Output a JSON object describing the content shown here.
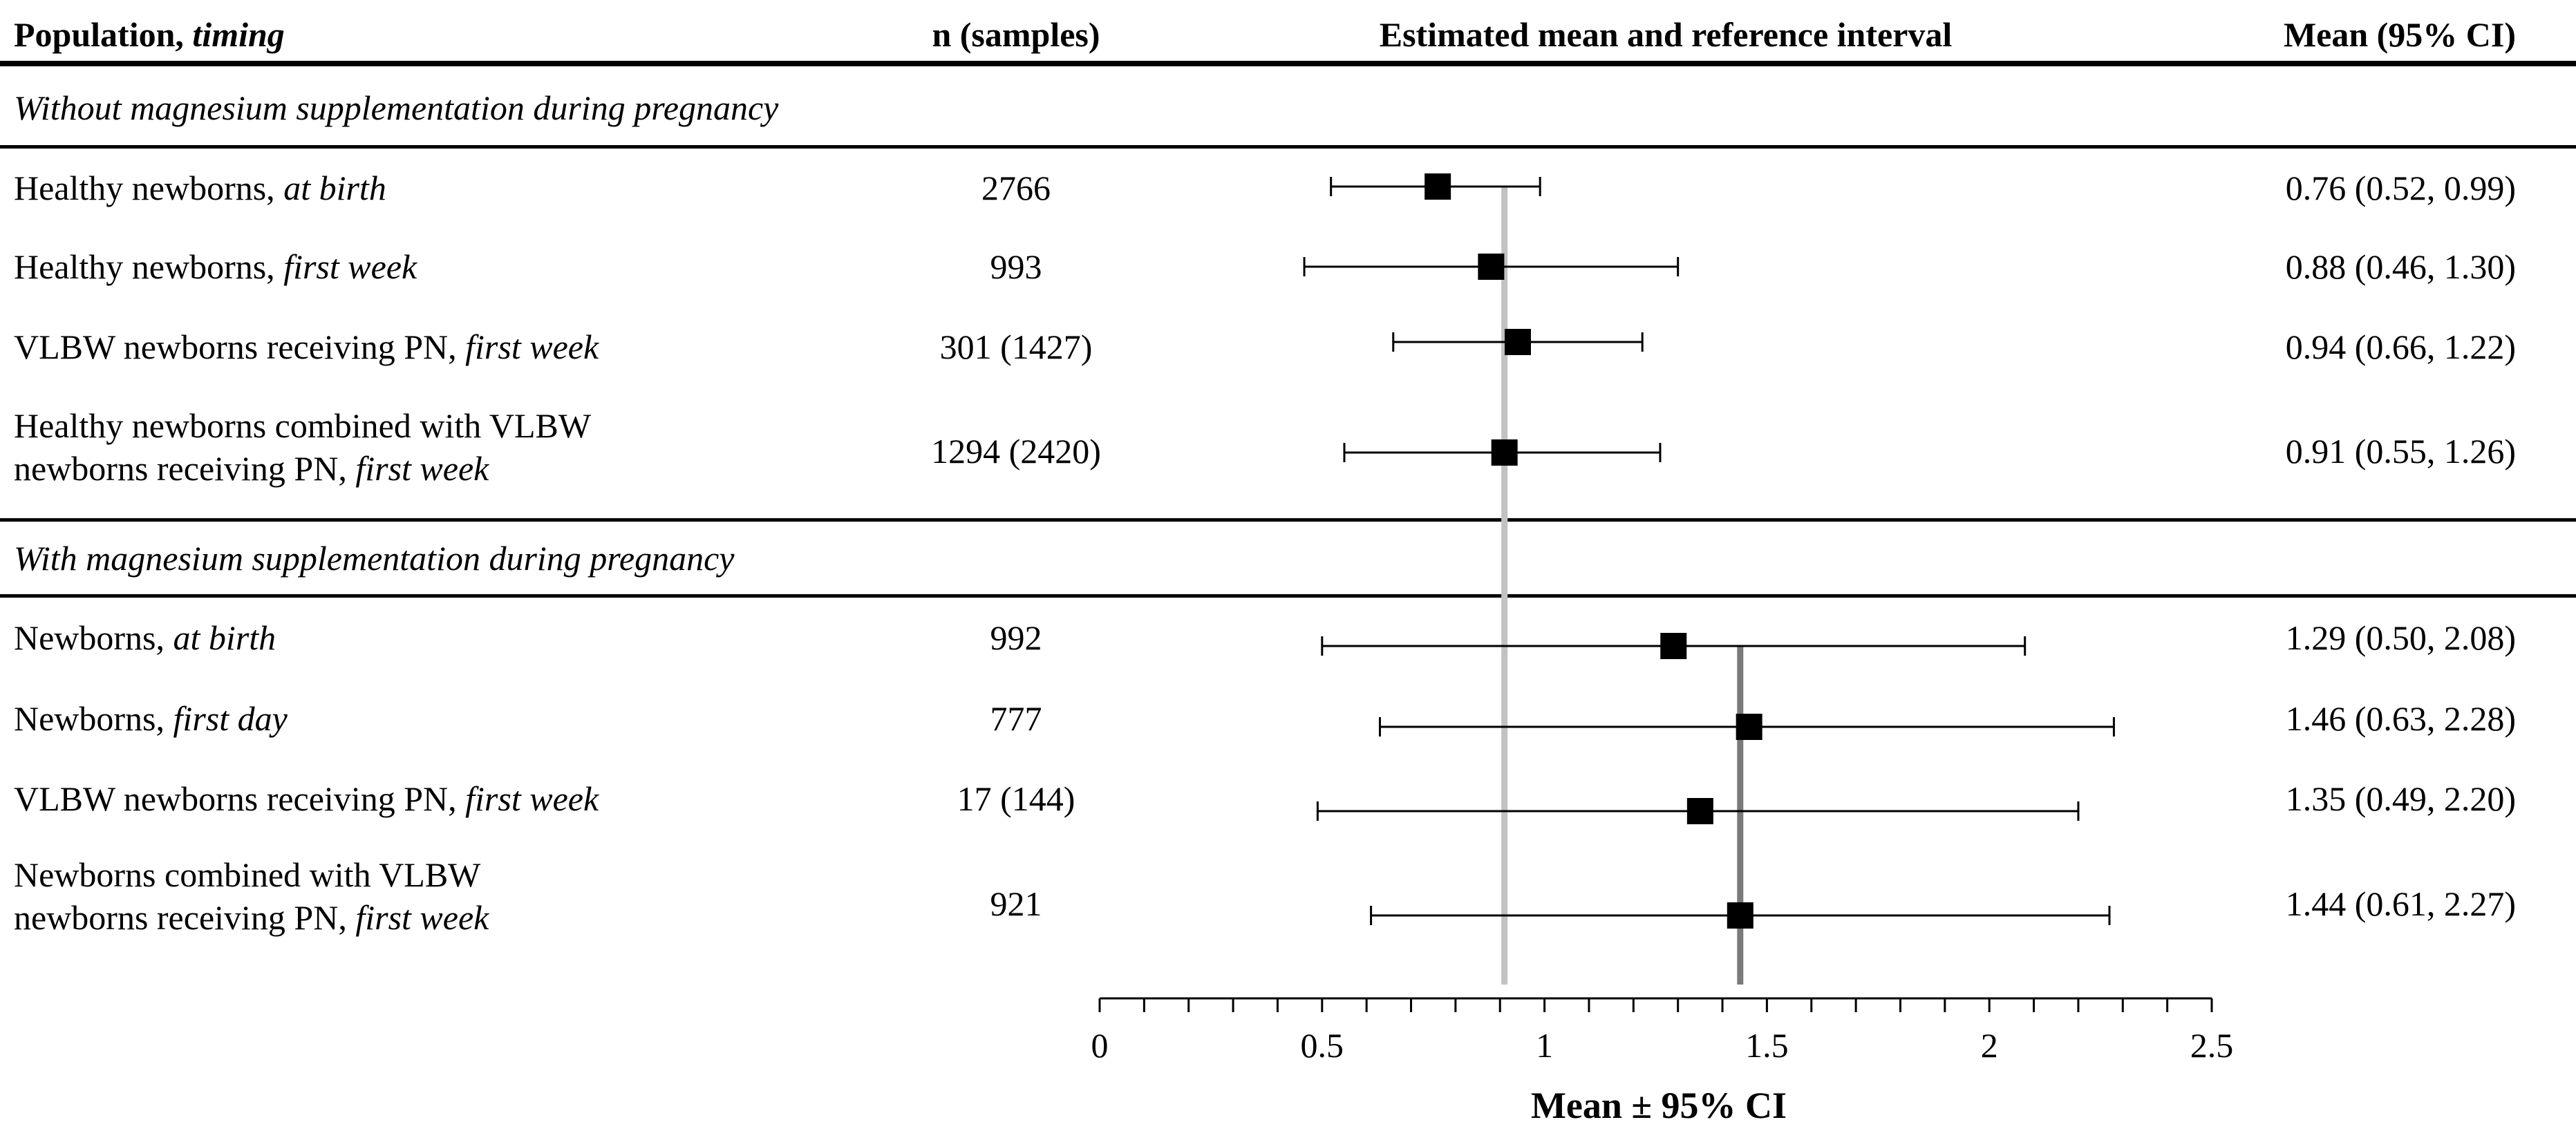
{
  "header": {
    "population_label": "Population, ",
    "population_timing": "timing",
    "n_label": "n (samples)",
    "interval_label": "Estimated mean and reference interval",
    "ci_label": "Mean (95% CI)"
  },
  "sections": [
    {
      "title": "Without magnesium supplementation during pregnancy"
    },
    {
      "title": "With magnesium supplementation during pregnancy"
    }
  ],
  "rows": [
    {
      "line1": "Healthy newborns, ",
      "line1_italic": "at birth",
      "line2": "",
      "line2_italic": "",
      "n": "2766",
      "ci_text": "0.76 (0.52, 0.99)"
    },
    {
      "line1": "Healthy newborns, ",
      "line1_italic": "first week",
      "line2": "",
      "line2_italic": "",
      "n": "993",
      "ci_text": "0.88 (0.46, 1.30)"
    },
    {
      "line1": "VLBW newborns receiving PN, ",
      "line1_italic": "first week",
      "line2": "",
      "line2_italic": "",
      "n": "301 (1427)",
      "ci_text": "0.94 (0.66, 1.22)"
    },
    {
      "line1": "Healthy newborns combined with VLBW",
      "line1_italic": "",
      "line2": "newborns receiving PN, ",
      "line2_italic": "first week",
      "n": "1294 (2420)",
      "ci_text": "0.91 (0.55, 1.26)"
    },
    {
      "line1": "Newborns, ",
      "line1_italic": "at birth",
      "line2": "",
      "line2_italic": "",
      "n": "992",
      "ci_text": "1.29 (0.50, 2.08)"
    },
    {
      "line1": "Newborns, ",
      "line1_italic": "first day",
      "line2": "",
      "line2_italic": "",
      "n": "777",
      "ci_text": "1.46 (0.63, 2.28)"
    },
    {
      "line1": "VLBW newborns receiving PN, ",
      "line1_italic": "first week",
      "line2": "",
      "line2_italic": "",
      "n": "17 (144)",
      "ci_text": "1.35 (0.49, 2.20)"
    },
    {
      "line1": "Newborns combined with VLBW",
      "line1_italic": "",
      "line2": "newborns receiving PN, ",
      "line2_italic": "first week",
      "n": "921",
      "ci_text": "1.44 (0.61, 2.27)"
    }
  ],
  "chart_data": {
    "type": "forest",
    "title": "Estimated mean and reference interval",
    "xlabel": "Mean ± 95% CI",
    "xlim": [
      0,
      2.5
    ],
    "xticks": [
      0,
      0.5,
      1,
      1.5,
      2,
      2.5
    ],
    "xtick_labels": [
      "0",
      "0.5",
      "1",
      "1.5",
      "2",
      "2.5"
    ],
    "minor_step": 0.1,
    "series": [
      {
        "name": "Without magnesium supplementation during pregnancy",
        "mean": [
          0.76,
          0.88,
          0.94,
          0.91
        ],
        "lower": [
          0.52,
          0.46,
          0.66,
          0.55
        ],
        "upper": [
          0.99,
          1.3,
          1.22,
          1.26
        ]
      },
      {
        "name": "With magnesium supplementation during pregnancy",
        "mean": [
          1.29,
          1.46,
          1.35,
          1.44
        ],
        "lower": [
          0.5,
          0.63,
          0.49,
          0.61
        ],
        "upper": [
          2.08,
          2.28,
          2.2,
          2.27
        ]
      }
    ],
    "reference_lines": [
      {
        "value": 0.91,
        "color": "#c2c2c2"
      },
      {
        "value": 1.44,
        "color": "#7a7a7a"
      }
    ]
  }
}
